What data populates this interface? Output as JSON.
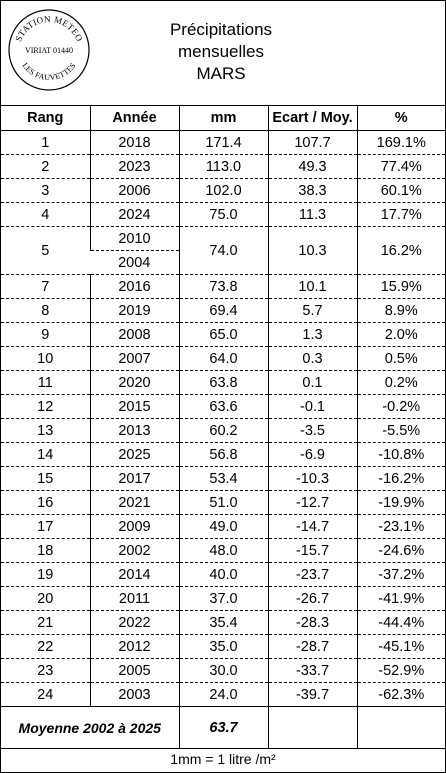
{
  "stamp": {
    "top_text": "STATION METEO",
    "center_text": "VIRIAT 01440",
    "bottom_text": "LES FAUVETTES"
  },
  "title": {
    "line1": "Précipitations",
    "line2": "mensuelles",
    "line3": "MARS"
  },
  "table": {
    "headers": [
      "Rang",
      "Année",
      "mm",
      "Ecart / Moy.",
      "%"
    ],
    "rows": [
      {
        "rang": "1",
        "annee": "2018",
        "mm": "171.4",
        "ecart": "107.7",
        "pct": "169.1%"
      },
      {
        "rang": "2",
        "annee": "2023",
        "mm": "113.0",
        "ecart": "49.3",
        "pct": "77.4%"
      },
      {
        "rang": "3",
        "annee": "2006",
        "mm": "102.0",
        "ecart": "38.3",
        "pct": "60.1%"
      },
      {
        "rang": "4",
        "annee": "2024",
        "mm": "75.0",
        "ecart": "11.3",
        "pct": "17.7%"
      },
      {
        "rang": "5",
        "annee": "2010",
        "annee2": "2004",
        "mm": "74.0",
        "ecart": "10.3",
        "pct": "16.2%"
      },
      {
        "rang": "7",
        "annee": "2016",
        "mm": "73.8",
        "ecart": "10.1",
        "pct": "15.9%"
      },
      {
        "rang": "8",
        "annee": "2019",
        "mm": "69.4",
        "ecart": "5.7",
        "pct": "8.9%"
      },
      {
        "rang": "9",
        "annee": "2008",
        "mm": "65.0",
        "ecart": "1.3",
        "pct": "2.0%"
      },
      {
        "rang": "10",
        "annee": "2007",
        "mm": "64.0",
        "ecart": "0.3",
        "pct": "0.5%"
      },
      {
        "rang": "11",
        "annee": "2020",
        "mm": "63.8",
        "ecart": "0.1",
        "pct": "0.2%"
      },
      {
        "rang": "12",
        "annee": "2015",
        "mm": "63.6",
        "ecart": "-0.1",
        "pct": "-0.2%"
      },
      {
        "rang": "13",
        "annee": "2013",
        "mm": "60.2",
        "ecart": "-3.5",
        "pct": "-5.5%"
      },
      {
        "rang": "14",
        "annee": "2025",
        "mm": "56.8",
        "ecart": "-6.9",
        "pct": "-10.8%"
      },
      {
        "rang": "15",
        "annee": "2017",
        "mm": "53.4",
        "ecart": "-10.3",
        "pct": "-16.2%"
      },
      {
        "rang": "16",
        "annee": "2021",
        "mm": "51.0",
        "ecart": "-12.7",
        "pct": "-19.9%"
      },
      {
        "rang": "17",
        "annee": "2009",
        "mm": "49.0",
        "ecart": "-14.7",
        "pct": "-23.1%"
      },
      {
        "rang": "18",
        "annee": "2002",
        "mm": "48.0",
        "ecart": "-15.7",
        "pct": "-24.6%"
      },
      {
        "rang": "19",
        "annee": "2014",
        "mm": "40.0",
        "ecart": "-23.7",
        "pct": "-37.2%"
      },
      {
        "rang": "20",
        "annee": "2011",
        "mm": "37.0",
        "ecart": "-26.7",
        "pct": "-41.9%"
      },
      {
        "rang": "21",
        "annee": "2022",
        "mm": "35.4",
        "ecart": "-28.3",
        "pct": "-44.4%"
      },
      {
        "rang": "22",
        "annee": "2012",
        "mm": "35.0",
        "ecart": "-28.7",
        "pct": "-45.1%"
      },
      {
        "rang": "23",
        "annee": "2005",
        "mm": "30.0",
        "ecart": "-33.7",
        "pct": "-52.9%"
      },
      {
        "rang": "24",
        "annee": "2003",
        "mm": "24.0",
        "ecart": "-39.7",
        "pct": "-62.3%"
      }
    ]
  },
  "average": {
    "label": "Moyenne 2002 à 2025",
    "value": "63.7"
  },
  "footer": {
    "note": "1mm = 1 litre /m²"
  }
}
